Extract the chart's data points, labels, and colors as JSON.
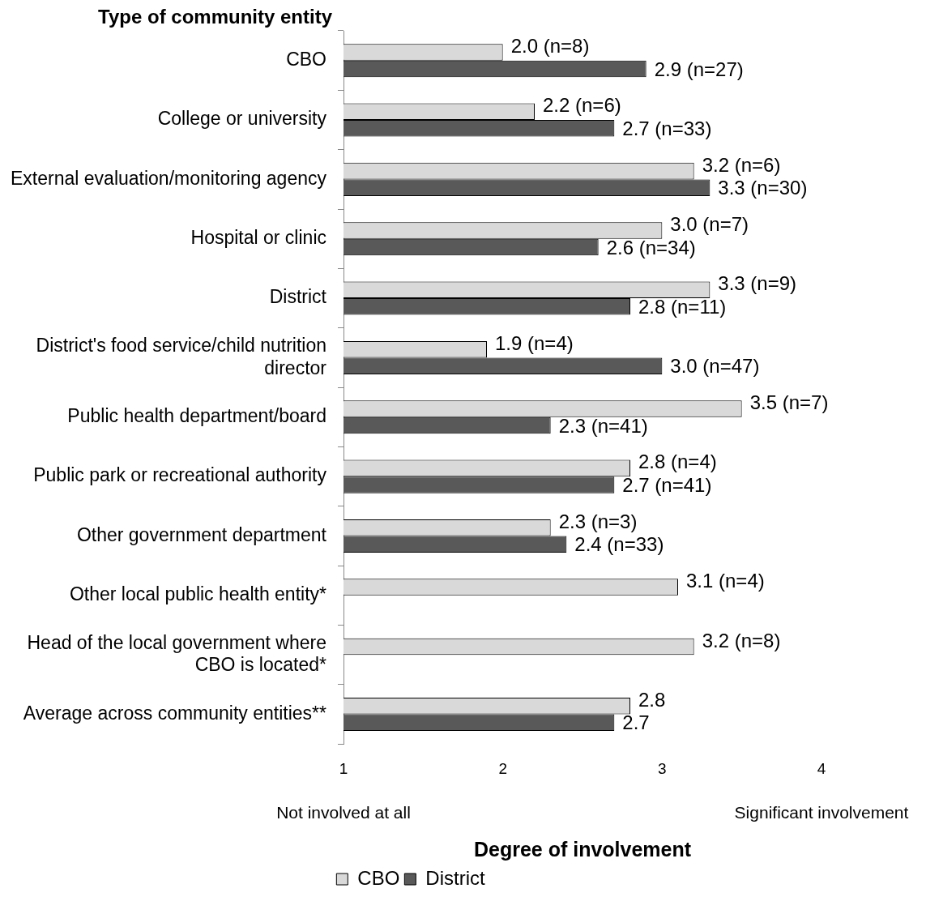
{
  "chart_data": {
    "type": "bar",
    "orientation": "horizontal",
    "xlabel": "Degree of involvement",
    "ylabel": "Type of community entity",
    "categories": [
      "CBO",
      "College or university",
      "External evaluation/monitoring agency",
      "Hospital or clinic",
      "District",
      "District's food service/child nutrition director",
      "Public health department/board",
      "Public park or recreational authority",
      "Other government department",
      "Other local public health entity*",
      "Head of the local government where CBO is located*",
      "Average across community entities**"
    ],
    "series": [
      {
        "name": "CBO",
        "color": "#d9d9d9",
        "values": [
          2.0,
          2.2,
          3.2,
          3.0,
          3.3,
          1.9,
          3.5,
          2.8,
          2.3,
          3.1,
          3.2,
          2.8
        ],
        "value_labels": [
          "2.0 (n=8)",
          "2.2 (n=6)",
          "3.2 (n=6)",
          "3.0 (n=7)",
          "3.3 (n=9)",
          "1.9 (n=4)",
          "3.5 (n=7)",
          "2.8 (n=4)",
          "2.3 (n=3)",
          "3.1 (n=4)",
          "3.2 (n=8)",
          "2.8"
        ]
      },
      {
        "name": "District",
        "color": "#595959",
        "values": [
          2.9,
          2.7,
          3.3,
          2.6,
          2.8,
          3.0,
          2.3,
          2.7,
          2.4,
          null,
          null,
          2.7
        ],
        "value_labels": [
          "2.9 (n=27)",
          "2.7 (n=33)",
          "3.3 (n=30)",
          "2.6 (n=34)",
          "2.8 (n=11)",
          "3.0 (n=47)",
          "2.3 (n=41)",
          "2.7 (n=41)",
          "2.4 (n=33)",
          null,
          null,
          "2.7"
        ]
      }
    ],
    "xlim": [
      1,
      4
    ],
    "xticks": [
      1,
      2,
      3,
      4
    ],
    "grid": false,
    "legend": "bottom",
    "annotations": [
      "Not involved at all",
      "Significant involvement"
    ]
  }
}
